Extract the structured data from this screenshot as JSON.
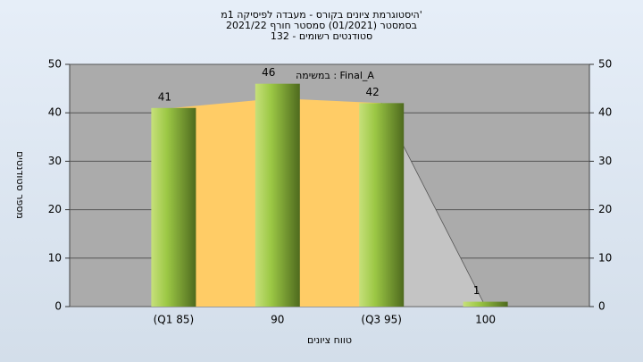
{
  "chart_data": {
    "type": "bar",
    "title": [
      "'היסטוגרמת ציונים בקורס - מעבדה לפיסיקה 1מ",
      "בסמסטר (01/2021) סמסטר חורף 2021/22",
      "סטודנטים רשומים - 132"
    ],
    "annotation": "במשימה : Final_A",
    "xlabel": "טווח ציונים",
    "ylabel": "מספר סטודנטים",
    "categories": [
      "(Q1 85)",
      "90",
      "(Q3 95)",
      "100"
    ],
    "values": [
      41,
      46,
      42,
      1
    ],
    "area": {
      "values": [
        41,
        43,
        42,
        0
      ],
      "colors": [
        "#ffcc66",
        "#c4c4c4"
      ]
    },
    "ylim": [
      0,
      50
    ],
    "yticks": [
      0,
      10,
      20,
      30,
      40,
      50
    ],
    "y2lim": [
      0,
      50
    ],
    "y2ticks": [
      0,
      10,
      20,
      30,
      40,
      50
    ],
    "grid": true
  }
}
